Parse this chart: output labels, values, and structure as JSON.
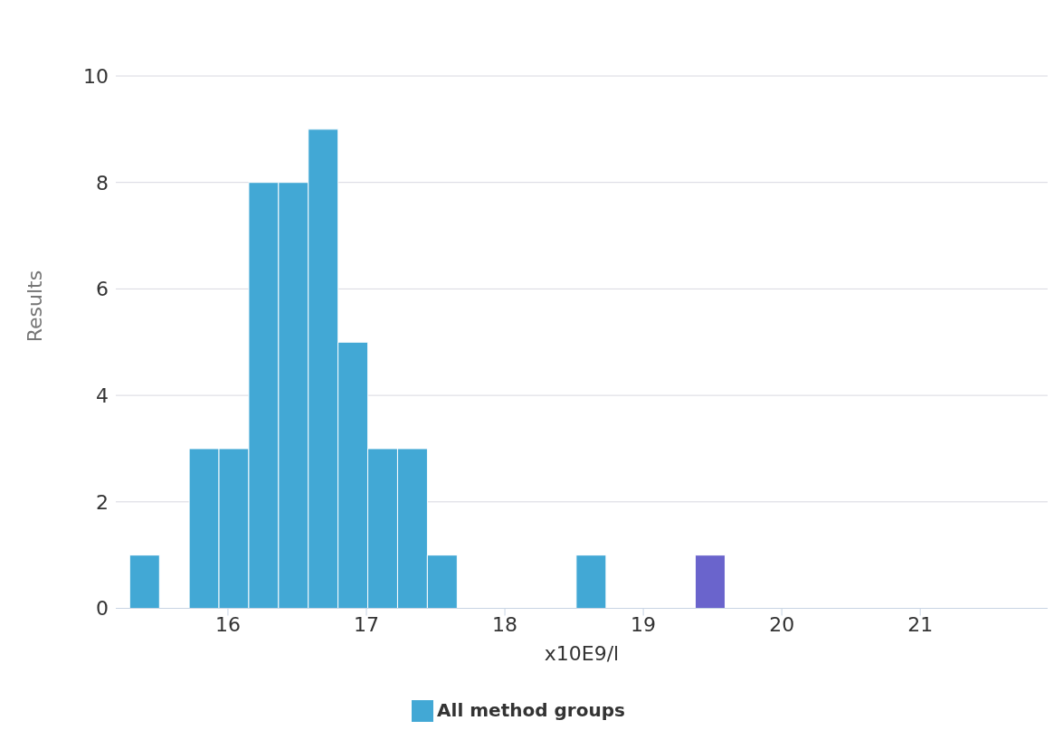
{
  "chart_data": {
    "type": "histogram",
    "xlabel": "x10E9/l",
    "ylabel": "Results",
    "bins": [
      15.29,
      15.505,
      15.72,
      15.935,
      16.15,
      16.365,
      16.58,
      16.795,
      17.01,
      17.225,
      17.44,
      17.655,
      17.87,
      18.085,
      18.3,
      18.515,
      18.73,
      18.945,
      19.16,
      19.375,
      19.59
    ],
    "series": [
      {
        "name": "All method groups",
        "color": "#42a8d5",
        "values": [
          1,
          0,
          3,
          3,
          8,
          8,
          9,
          5,
          3,
          3,
          1,
          0,
          0,
          0,
          0,
          1,
          0,
          0,
          0,
          0
        ]
      },
      {
        "color": "#6a64cc",
        "values": [
          0,
          0,
          0,
          0,
          0,
          0,
          0,
          0,
          0,
          0,
          0,
          0,
          0,
          0,
          0,
          0,
          0,
          0,
          0,
          1
        ]
      }
    ],
    "xlim": [
      15.19,
      21.92
    ],
    "xticks": [
      16,
      17,
      18,
      19,
      20,
      21
    ],
    "ylim": [
      0,
      10
    ],
    "yticks": [
      0,
      2,
      4,
      6,
      8,
      10
    ],
    "grid": "y",
    "legend": "bottom"
  }
}
